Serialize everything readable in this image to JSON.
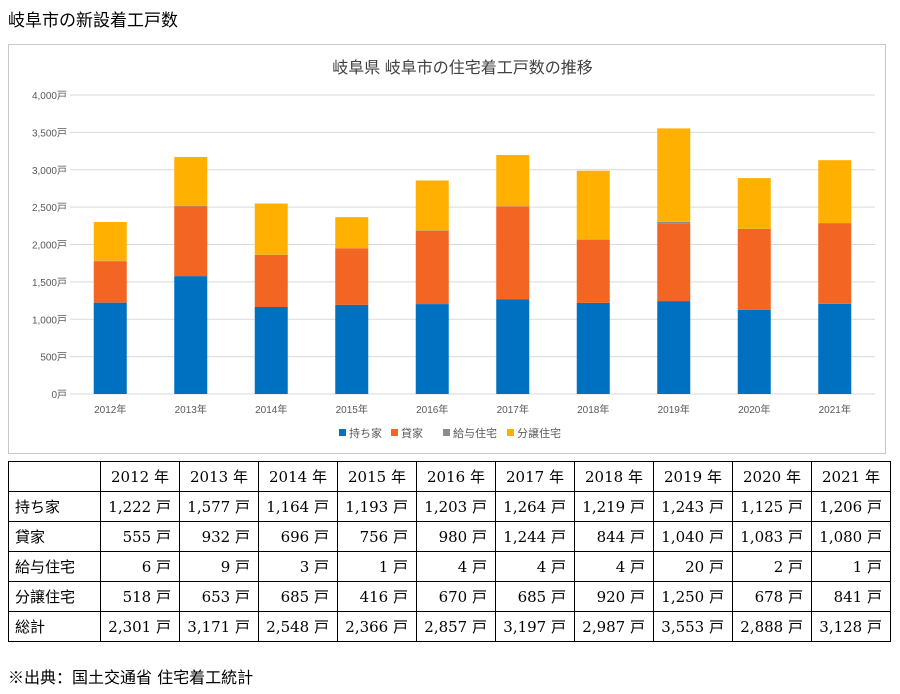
{
  "page_title": "岐阜市の新設着工戸数",
  "chart_data": {
    "type": "bar",
    "stacked": true,
    "title": "岐阜県 岐阜市の住宅着工戸数の推移",
    "categories": [
      "2012年",
      "2013年",
      "2014年",
      "2015年",
      "2016年",
      "2017年",
      "2018年",
      "2019年",
      "2020年",
      "2021年"
    ],
    "series": [
      {
        "name": "持ち家",
        "color": "#0070C0",
        "values": [
          1222,
          1577,
          1164,
          1193,
          1203,
          1264,
          1219,
          1243,
          1125,
          1206
        ]
      },
      {
        "name": "貸家",
        "color": "#F26522",
        "values": [
          555,
          932,
          696,
          756,
          980,
          1244,
          844,
          1040,
          1083,
          1080
        ]
      },
      {
        "name": "給与住宅",
        "color": "#8C8C8C",
        "values": [
          6,
          9,
          3,
          1,
          4,
          4,
          4,
          20,
          2,
          1
        ]
      },
      {
        "name": "分譲住宅",
        "color": "#FFB000",
        "values": [
          518,
          653,
          685,
          416,
          670,
          685,
          920,
          1250,
          678,
          841
        ]
      }
    ],
    "ylim": [
      0,
      4000
    ],
    "yticks": [
      "0戸",
      "500戸",
      "1,000戸",
      "1,500戸",
      "2,000戸",
      "2,500戸",
      "3,000戸",
      "3,500戸",
      "4,000戸"
    ],
    "ytick_values": [
      0,
      500,
      1000,
      1500,
      2000,
      2500,
      3000,
      3500,
      4000
    ],
    "grid": true,
    "legend_position": "bottom"
  },
  "table": {
    "header": [
      "",
      "2012 年",
      "2013 年",
      "2014 年",
      "2015 年",
      "2016 年",
      "2017 年",
      "2018 年",
      "2019 年",
      "2020 年",
      "2021 年"
    ],
    "rows": [
      {
        "label": "持ち家",
        "cells": [
          "1,222 戸",
          "1,577 戸",
          "1,164 戸",
          "1,193 戸",
          "1,203 戸",
          "1,264 戸",
          "1,219 戸",
          "1,243 戸",
          "1,125 戸",
          "1,206 戸"
        ]
      },
      {
        "label": "貸家",
        "cells": [
          "555 戸",
          "932 戸",
          "696 戸",
          "756 戸",
          "980 戸",
          "1,244 戸",
          "844 戸",
          "1,040 戸",
          "1,083 戸",
          "1,080 戸"
        ]
      },
      {
        "label": "給与住宅",
        "cells": [
          "6 戸",
          "9 戸",
          "3 戸",
          "1 戸",
          "4 戸",
          "4 戸",
          "4 戸",
          "20 戸",
          "2 戸",
          "1 戸"
        ]
      },
      {
        "label": "分譲住宅",
        "cells": [
          "518 戸",
          "653 戸",
          "685 戸",
          "416 戸",
          "670 戸",
          "685 戸",
          "920 戸",
          "1,250 戸",
          "678 戸",
          "841 戸"
        ]
      },
      {
        "label": "総計",
        "cells": [
          "2,301 戸",
          "3,171 戸",
          "2,548 戸",
          "2,366 戸",
          "2,857 戸",
          "3,197 戸",
          "2,987 戸",
          "3,553 戸",
          "2,888 戸",
          "3,128 戸"
        ]
      }
    ]
  },
  "footnote": "※出典：国土交通省 住宅着工統計"
}
